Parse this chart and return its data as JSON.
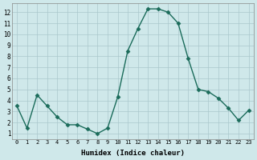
{
  "x": [
    0,
    1,
    2,
    3,
    4,
    5,
    6,
    7,
    8,
    9,
    10,
    11,
    12,
    13,
    14,
    15,
    16,
    17,
    18,
    19,
    20,
    21,
    22,
    23
  ],
  "y": [
    3.5,
    1.5,
    4.5,
    3.5,
    2.5,
    1.8,
    1.8,
    1.4,
    1.0,
    1.5,
    4.3,
    8.5,
    10.5,
    12.3,
    12.3,
    12.0,
    11.0,
    7.8,
    5.0,
    4.8,
    4.2,
    3.3,
    2.2,
    3.1
  ],
  "line_color": "#1a6b5a",
  "marker": "D",
  "marker_size": 2.5,
  "bg_color": "#cfe8ea",
  "grid_color": "#aac8cc",
  "xlabel": "Humidex (Indice chaleur)",
  "xlim": [
    -0.5,
    23.5
  ],
  "ylim": [
    0.5,
    12.8
  ],
  "yticks": [
    1,
    2,
    3,
    4,
    5,
    6,
    7,
    8,
    9,
    10,
    11,
    12
  ],
  "xticks": [
    0,
    1,
    2,
    3,
    4,
    5,
    6,
    7,
    8,
    9,
    10,
    11,
    12,
    13,
    14,
    15,
    16,
    17,
    18,
    19,
    20,
    21,
    22,
    23
  ]
}
